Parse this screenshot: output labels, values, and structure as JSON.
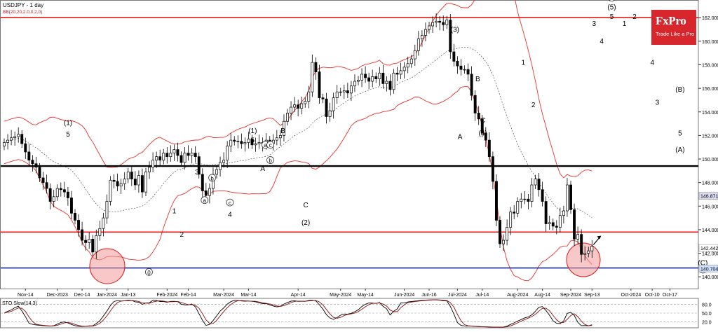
{
  "header": {
    "symbol": "USDJPY - 1 day",
    "indicator": "BB(20,20,2.0,0,2,0)"
  },
  "logo": {
    "brand": "FxPro",
    "tagline": "Trade Like a Pro"
  },
  "sub_panel_label": "STO Slow(14,3)",
  "colors": {
    "bull": "#16a016",
    "bear": "#c8141e",
    "candle": "#000000",
    "bb": "#e8302c",
    "mid": "#555555",
    "red_line": "#e01818",
    "black_line": "#000000",
    "blue_line": "#1a2a8c",
    "circle": "#f39a9a"
  },
  "chart_data": {
    "type": "line",
    "title": "USDJPY - 1 day",
    "ylim": [
      139.0,
      163.5
    ],
    "yticks": [
      "162.000",
      "160.000",
      "158.000",
      "156.000",
      "154.000",
      "152.000",
      "150.000",
      "148.000",
      "146.000",
      "144.000",
      "142.000",
      "140.000"
    ],
    "xticks": [
      "Nov-14",
      "Dec-2023",
      "Dec-14",
      "Jan-2024",
      "Jan-13",
      "Feb-2024",
      "Feb-14",
      "Mar-2024",
      "Mar-14",
      "Apr-14",
      "May-2024",
      "May-14",
      "Jun-2024",
      "Jun-16",
      "Jul-2024",
      "Jul-14",
      "Aug-2024",
      "Aug-14",
      "Sep-2024",
      "Sep-13",
      "Oct-2024",
      "Oct-10",
      "Oct-17"
    ],
    "price_tags": [
      {
        "value": 146.871,
        "label": "146.871",
        "bg": "#dcdcf0"
      },
      {
        "value": 142.442,
        "label": "142.442",
        "bg": "#ffffff"
      },
      {
        "value": 140.704,
        "label": "140.704",
        "bg": "#cfe0ff"
      }
    ],
    "horizontal_levels": [
      {
        "value": 162.0,
        "color": "red"
      },
      {
        "value": 149.4,
        "color": "black"
      },
      {
        "value": 143.8,
        "color": "red"
      },
      {
        "value": 140.75,
        "color": "blue"
      }
    ],
    "close": [
      151.4,
      151.6,
      151.8,
      151.9,
      152.1,
      151.3,
      150.6,
      149.9,
      149.6,
      149.3,
      148.4,
      148.0,
      147.5,
      146.4,
      146.8,
      147.5,
      147.4,
      147.2,
      146.7,
      145.4,
      144.8,
      144.0,
      143.1,
      142.9,
      143.2,
      142.1,
      143.5,
      144.1,
      145.0,
      146.4,
      148.2,
      148.1,
      147.7,
      147.9,
      148.3,
      148.9,
      148.3,
      147.8,
      148.6,
      147.2,
      148.9,
      149.3,
      149.9,
      150.2,
      149.9,
      150.5,
      150.2,
      150.5,
      150.8,
      150.3,
      149.7,
      150.5,
      150.3,
      150.5,
      150.2,
      148.7,
      147.3,
      146.9,
      147.5,
      148.7,
      149.1,
      149.7,
      149.9,
      151.1,
      151.6,
      151.5,
      151.5,
      151.3,
      151.4,
      151.7,
      151.2,
      151.3,
      151.4,
      151.3,
      151.6,
      151.3,
      151.6,
      151.8,
      152.0,
      153.2,
      153.9,
      154.4,
      154.6,
      154.3,
      154.7,
      154.9,
      155.7,
      158.2,
      157.4,
      155.2,
      155.1,
      153.6,
      154.1,
      155.2,
      155.7,
      155.7,
      155.8,
      155.6,
      156.2,
      156.6,
      156.7,
      157.2,
      156.9,
      156.6,
      157.0,
      156.8,
      157.3,
      156.4,
      156.6,
      155.9,
      157.3,
      157.2,
      157.5,
      157.8,
      158.1,
      158.5,
      159.2,
      160.2,
      160.5,
      161.0,
      161.3,
      161.6,
      161.7,
      161.6,
      161.4,
      161.8,
      159.1,
      158.3,
      157.9,
      157.6,
      157.6,
      157.2,
      155.4,
      153.9,
      153.4,
      152.2,
      151.6,
      150.2,
      148.1,
      144.8,
      142.8,
      143.1,
      144.2,
      145.5,
      145.4,
      146.4,
      146.6,
      146.6,
      146.4,
      147.8,
      148.3,
      147.4,
      146.4,
      144.5,
      144.6,
      144.3,
      144.2,
      145.2,
      145.6,
      147.8,
      145.7,
      143.2,
      143.6,
      141.9,
      142.0,
      142.2,
      142.6
    ],
    "annotations": [
      {
        "text": "(1)",
        "x": "Nov-29 2023",
        "y": 152.9
      },
      {
        "text": "5",
        "x": "Nov-29 2023",
        "y": 151.9
      },
      {
        "text": "0",
        "x": "Dec-31 2023",
        "y": 140.2,
        "circled": true
      },
      {
        "text": "1",
        "x": "Jan-10 2024",
        "y": 145.4
      },
      {
        "text": "2",
        "x": "Jan-13 2024",
        "y": 143.4
      },
      {
        "text": "3",
        "x": "Jan-19 2024",
        "y": 148.7
      },
      {
        "text": "a",
        "x": "Jan-22 2024",
        "y": 146.3,
        "circled": true
      },
      {
        "text": "b",
        "x": "Jan-25 2024",
        "y": 148.2,
        "circled": true
      },
      {
        "text": "c",
        "x": "Feb-1 2024",
        "y": 146.1,
        "circled": true
      },
      {
        "text": "4",
        "x": "Feb-1 2024",
        "y": 145.1
      },
      {
        "text": "(1)",
        "x": "Feb-10 2024",
        "y": 152.2
      },
      {
        "text": "5",
        "x": "Feb-10 2024",
        "y": 151.4
      },
      {
        "text": "A",
        "x": "Feb-14 2024",
        "y": 149.0
      },
      {
        "text": "a",
        "x": "Feb-15 2024",
        "y": 151.0,
        "circled": true
      },
      {
        "text": "c",
        "x": "Feb-17 2024",
        "y": 151.0,
        "circled": true
      },
      {
        "text": "b",
        "x": "Feb-17 2024",
        "y": 149.7,
        "circled": true
      },
      {
        "text": "B",
        "x": "Feb-22 2024",
        "y": 152.2
      },
      {
        "text": "C",
        "x": "Mar-2 2024",
        "y": 145.9
      },
      {
        "text": "(2)",
        "x": "Mar-2 2024",
        "y": 144.4
      },
      {
        "text": "(3)",
        "x": "Apr-30 2024",
        "y": 160.8
      },
      {
        "text": "A",
        "x": "May-2 2024",
        "y": 151.7
      },
      {
        "text": "B",
        "x": "May-9 2024",
        "y": 156.6
      },
      {
        "text": "C",
        "x": "May-11 2024",
        "y": 153.1
      },
      {
        "text": "(4)",
        "x": "May-11 2024",
        "y": 152.0
      },
      {
        "text": "1",
        "x": "May-27 2024",
        "y": 158.0
      },
      {
        "text": "2",
        "x": "May-31 2024",
        "y": 154.4
      },
      {
        "text": "3",
        "x": "Jun-24 2024",
        "y": 161.3
      },
      {
        "text": "4",
        "x": "Jun-27 2024",
        "y": 159.8
      },
      {
        "text": "(1)",
        "x": "Jul-1 2024",
        "y": 163.5,
        "circled": true
      },
      {
        "text": "(5)",
        "x": "Jul-1 2024",
        "y": 162.7
      },
      {
        "text": "5",
        "x": "Jul-1 2024",
        "y": 161.9
      },
      {
        "text": "1",
        "x": "Jul-6 2024",
        "y": 161.3
      },
      {
        "text": "2",
        "x": "Jul-10 2024",
        "y": 161.9
      },
      {
        "text": "4",
        "x": "Jul-17 2024",
        "y": 158.0
      },
      {
        "text": "3",
        "x": "Jul-19 2024",
        "y": 154.6
      },
      {
        "text": "(B)",
        "x": "Jul-28 2024",
        "y": 155.7
      },
      {
        "text": "5",
        "x": "Jul-28 2024",
        "y": 152.0
      },
      {
        "text": "(A)",
        "x": "Jul-28 2024",
        "y": 150.6
      },
      {
        "text": "(C)",
        "x": "Aug-6 2024",
        "y": 141.0
      },
      {
        "text": "2",
        "x": "Aug-6 2024",
        "y": 140.4,
        "circled": true
      },
      {
        "text": "(1)",
        "x": "Aug-17 2024",
        "y": 149.7
      },
      {
        "text": "a",
        "x": "Sep-1 2024",
        "y": 145.5,
        "circled": true
      },
      {
        "text": "A",
        "x": "Sep-2 2024",
        "y": 143.0
      },
      {
        "text": "b",
        "x": "Sep-3 2024",
        "y": 143.4,
        "circled": true
      },
      {
        "text": "B",
        "x": "Sep-6 2024",
        "y": 148.6
      },
      {
        "text": "c",
        "x": "Sep-6 2024",
        "y": 147.9,
        "circled": true
      },
      {
        "text": "C",
        "x": "Sep-10 2024",
        "y": 142.0
      },
      {
        "text": "(2)",
        "x": "Sep-10 2024",
        "y": 141.0
      },
      {
        "text": "(3)",
        "x": "Sep-27 2024",
        "y": 155.4
      }
    ]
  },
  "oscillator": {
    "ylim": [
      0,
      100
    ],
    "levels": [
      "80.0",
      "50.0",
      "20.0"
    ]
  }
}
